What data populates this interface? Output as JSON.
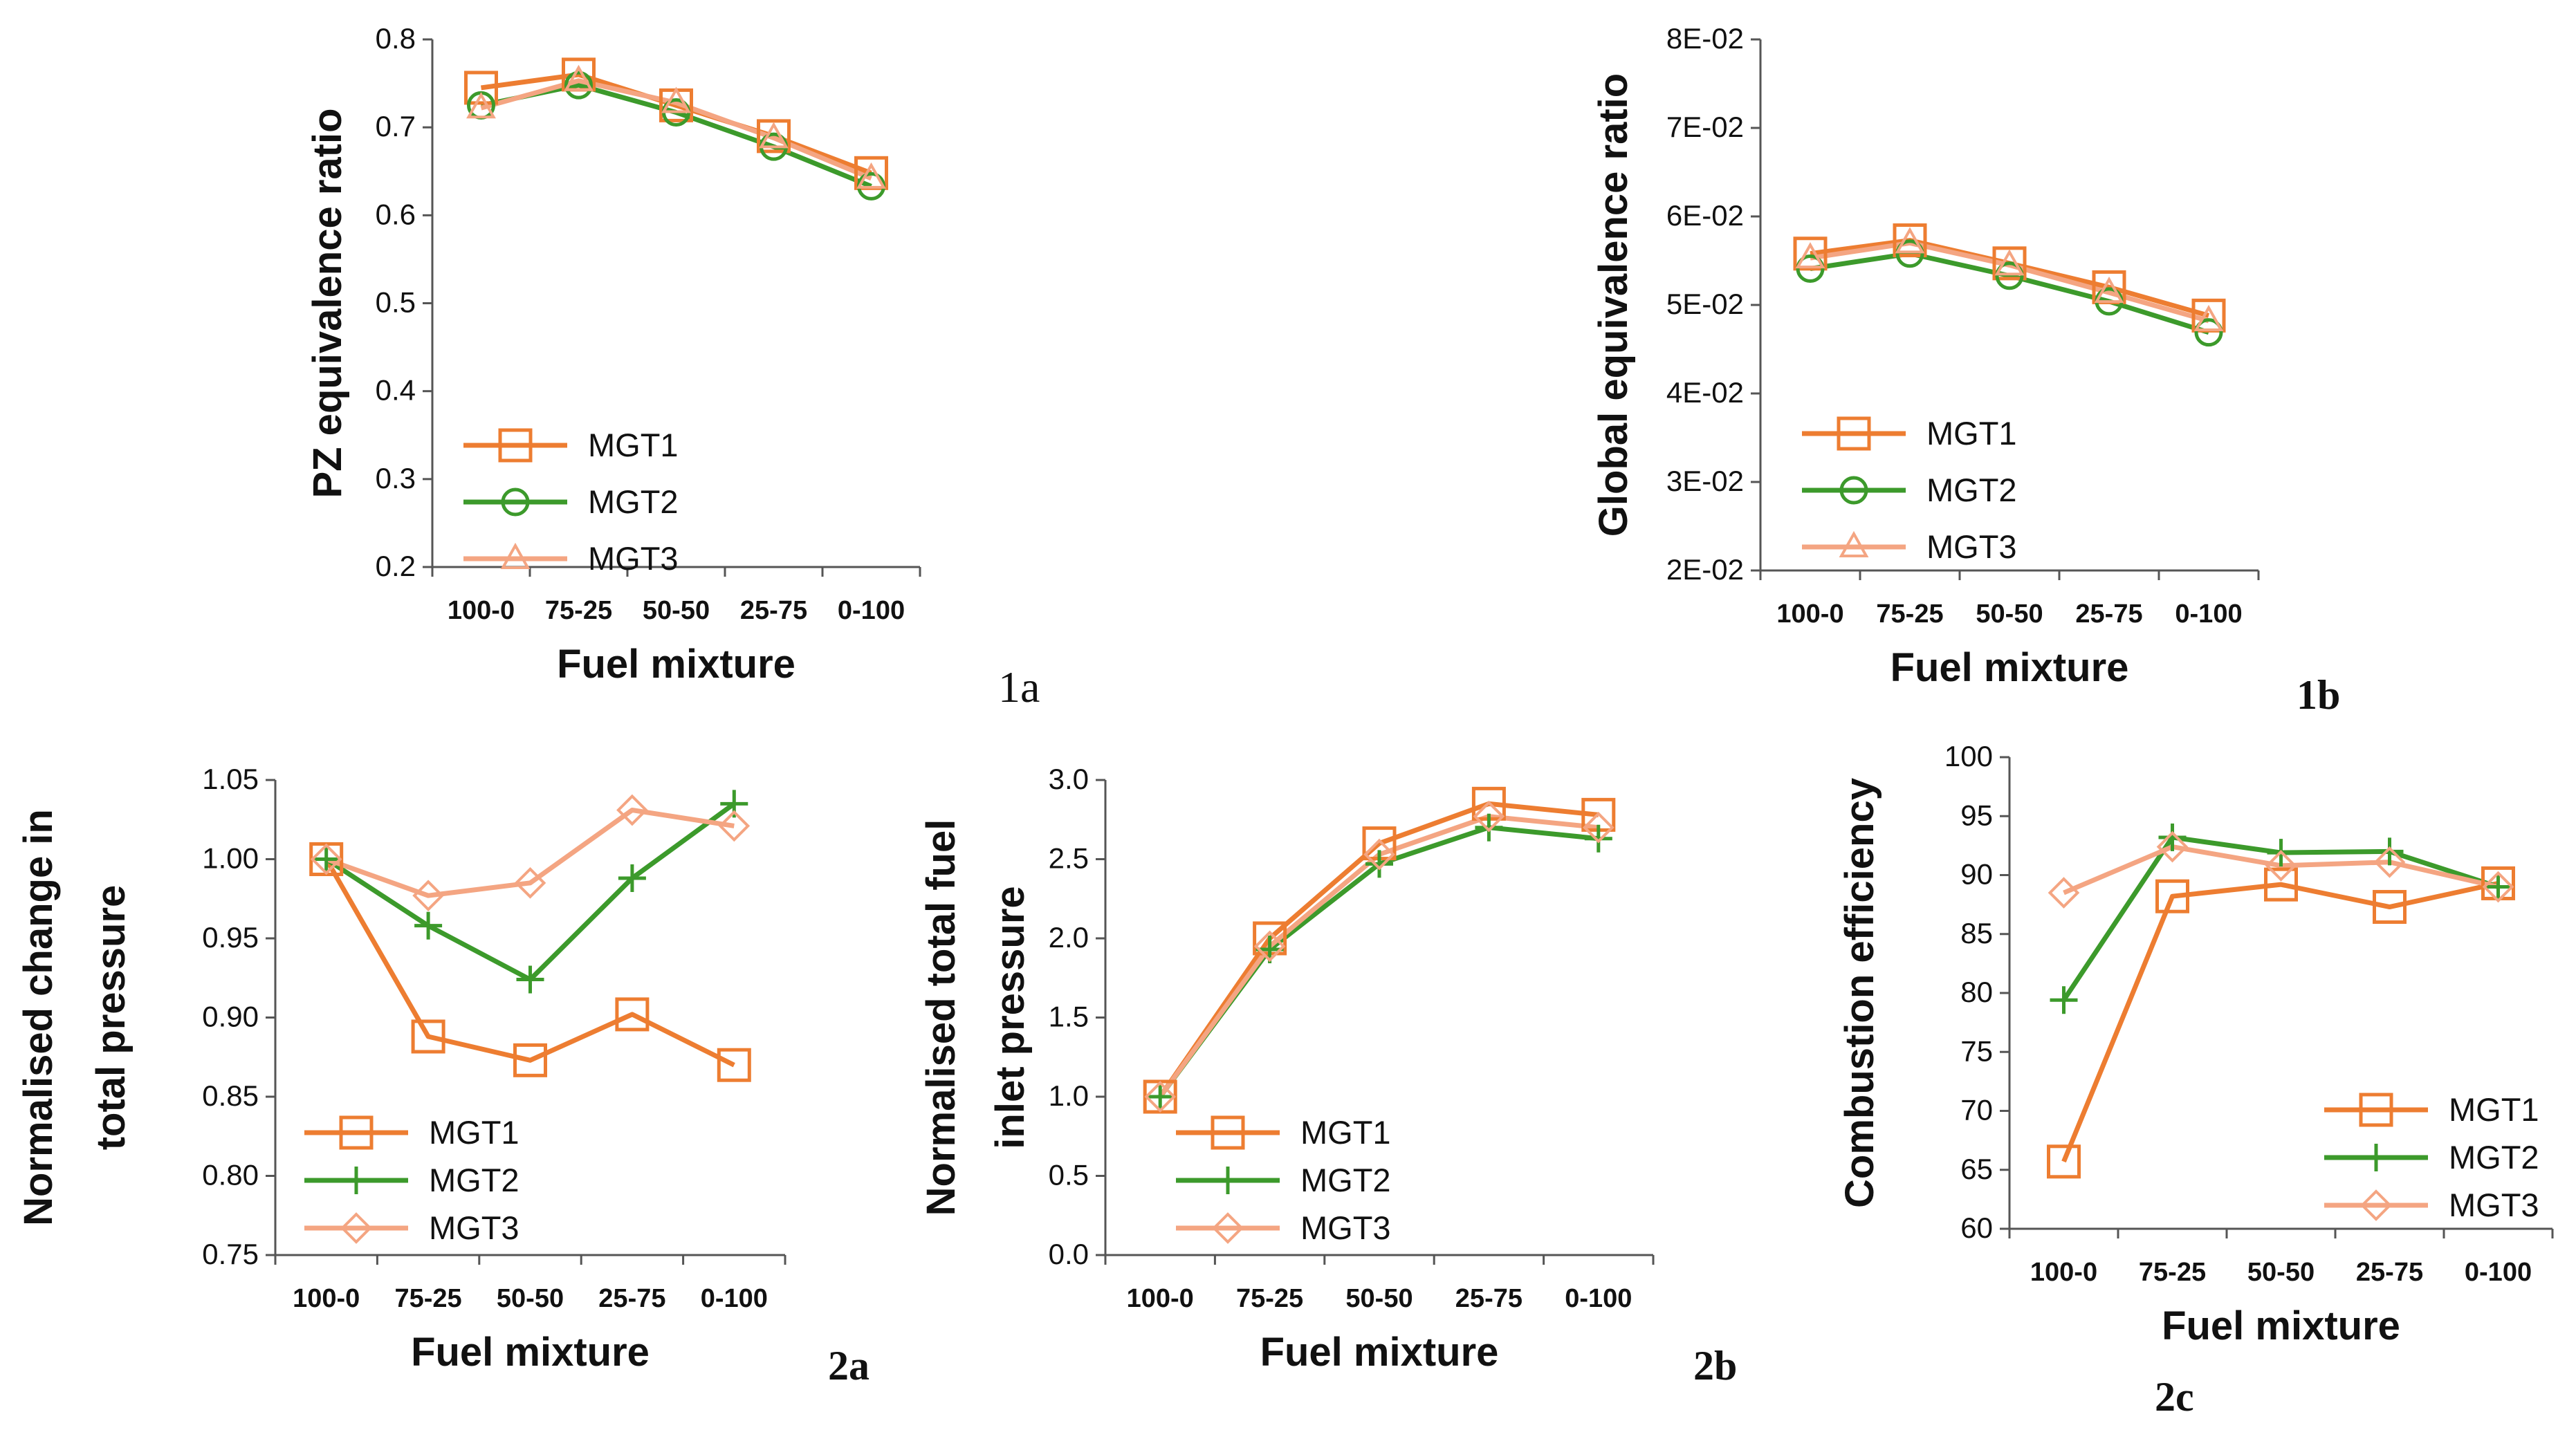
{
  "colors": {
    "MGT1": "#ED7D31",
    "MGT2": "#3C9A2B",
    "MGT3": "#F4A582",
    "axis": "#555555"
  },
  "chart_data": [
    {
      "id": "1a",
      "type": "line",
      "categories": [
        "100-0",
        "75-25",
        "50-50",
        "25-75",
        "0-100"
      ],
      "xlabel": "Fuel mixture",
      "ylabel": [
        "PZ equivalence ratio"
      ],
      "ylim": [
        0.2,
        0.8
      ],
      "yticks": [
        "0.2",
        "0.3",
        "0.4",
        "0.5",
        "0.6",
        "0.7",
        "0.8"
      ],
      "series": [
        {
          "name": "MGT1",
          "marker": "square",
          "values": [
            0.745,
            0.76,
            0.725,
            0.69,
            0.648
          ]
        },
        {
          "name": "MGT2",
          "marker": "circle",
          "values": [
            0.725,
            0.748,
            0.717,
            0.678,
            0.633
          ]
        },
        {
          "name": "MGT3",
          "marker": "triangle",
          "values": [
            0.722,
            0.753,
            0.728,
            0.688,
            0.642
          ]
        }
      ],
      "panel_label": "1a"
    },
    {
      "id": "1b",
      "type": "line",
      "categories": [
        "100-0",
        "75-25",
        "50-50",
        "25-75",
        "0-100"
      ],
      "xlabel": "Fuel mixture",
      "ylabel": [
        "Global equivalence ratio"
      ],
      "ylim": [
        0.02,
        0.08
      ],
      "yticks": [
        "2E-02",
        "3E-02",
        "4E-02",
        "5E-02",
        "6E-02",
        "7E-02",
        "8E-02"
      ],
      "series": [
        {
          "name": "MGT1",
          "marker": "square",
          "values": [
            0.0558,
            0.0573,
            0.0547,
            0.052,
            0.0488
          ]
        },
        {
          "name": "MGT2",
          "marker": "circle",
          "values": [
            0.0541,
            0.0558,
            0.0533,
            0.0504,
            0.0469
          ]
        },
        {
          "name": "MGT3",
          "marker": "triangle",
          "values": [
            0.0553,
            0.057,
            0.0545,
            0.0514,
            0.0482
          ]
        }
      ],
      "panel_label": "1b"
    },
    {
      "id": "2a",
      "type": "line",
      "categories": [
        "100-0",
        "75-25",
        "50-50",
        "25-75",
        "0-100"
      ],
      "xlabel": "Fuel mixture",
      "ylabel": [
        "Normalised change in",
        "total pressure"
      ],
      "ylim": [
        0.75,
        1.05
      ],
      "yticks": [
        "0.75",
        "0.80",
        "0.85",
        "0.90",
        "0.95",
        "1.00",
        "1.05"
      ],
      "series": [
        {
          "name": "MGT1",
          "marker": "square",
          "values": [
            1.0,
            0.888,
            0.873,
            0.902,
            0.87
          ]
        },
        {
          "name": "MGT2",
          "marker": "plus",
          "values": [
            1.0,
            0.958,
            0.924,
            0.988,
            1.035
          ]
        },
        {
          "name": "MGT3",
          "marker": "diamond",
          "values": [
            1.0,
            0.977,
            0.985,
            1.031,
            1.021
          ]
        }
      ],
      "panel_label": "2a"
    },
    {
      "id": "2b",
      "type": "line",
      "categories": [
        "100-0",
        "75-25",
        "50-50",
        "25-75",
        "0-100"
      ],
      "xlabel": "Fuel mixture",
      "ylabel": [
        "Normalised total  fuel",
        "inlet pressure"
      ],
      "ylim": [
        0.0,
        3.0
      ],
      "yticks": [
        "0.0",
        "0.5",
        "1.0",
        "1.5",
        "2.0",
        "2.5",
        "3.0"
      ],
      "series": [
        {
          "name": "MGT1",
          "marker": "square",
          "values": [
            1.0,
            2.0,
            2.6,
            2.85,
            2.78
          ]
        },
        {
          "name": "MGT2",
          "marker": "plus",
          "values": [
            1.0,
            1.93,
            2.47,
            2.7,
            2.63
          ]
        },
        {
          "name": "MGT3",
          "marker": "diamond",
          "values": [
            1.0,
            1.95,
            2.53,
            2.77,
            2.7
          ]
        }
      ],
      "panel_label": "2b"
    },
    {
      "id": "2c",
      "type": "line",
      "categories": [
        "100-0",
        "75-25",
        "50-50",
        "25-75",
        "0-100"
      ],
      "xlabel": "Fuel mixture",
      "ylabel": [
        "Combustion efficiency"
      ],
      "ylim": [
        60,
        100
      ],
      "yticks": [
        "60",
        "65",
        "70",
        "75",
        "80",
        "85",
        "90",
        "95",
        "100"
      ],
      "series": [
        {
          "name": "MGT1",
          "marker": "square",
          "values": [
            65.7,
            88.2,
            89.2,
            87.3,
            89.3
          ]
        },
        {
          "name": "MGT2",
          "marker": "plus",
          "values": [
            79.4,
            93.2,
            91.9,
            92.0,
            89.0
          ]
        },
        {
          "name": "MGT3",
          "marker": "diamond",
          "values": [
            88.5,
            92.4,
            90.8,
            91.1,
            89.0
          ]
        }
      ],
      "panel_label": "2c"
    }
  ]
}
